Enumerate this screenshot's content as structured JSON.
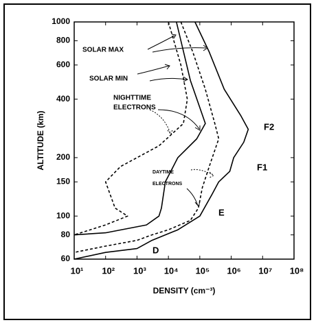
{
  "chart_data": {
    "type": "line",
    "xlabel": "DENSITY (cm⁻³)",
    "ylabel": "ALTITUDE (km)",
    "xscale": "log",
    "yscale": "log",
    "xlim": [
      10,
      100000000
    ],
    "ylim": [
      60,
      1000
    ],
    "xticks": [
      {
        "value": 10,
        "label": "10¹"
      },
      {
        "value": 100,
        "label": "10²"
      },
      {
        "value": 1000,
        "label": "10³"
      },
      {
        "value": 10000,
        "label": "10⁴"
      },
      {
        "value": 100000,
        "label": "10⁵"
      },
      {
        "value": 1000000,
        "label": "10⁶"
      },
      {
        "value": 10000000,
        "label": "10⁷"
      },
      {
        "value": 100000000,
        "label": "10⁸"
      }
    ],
    "yticks": [
      60,
      80,
      100,
      150,
      200,
      400,
      600,
      800,
      1000
    ],
    "annotations": [
      "SOLAR MAX",
      "SOLAR MIN",
      "NIGHTTIME",
      "ELECTRONS",
      "DAYTIME",
      "ELECTRONS",
      "F2",
      "F1",
      "E",
      "D"
    ],
    "series": [
      {
        "color": "#000000",
        "dash": true,
        "x": [
          10000,
          25000,
          40000,
          30000,
          5000,
          300,
          100,
          200,
          500,
          100,
          10
        ],
        "values": [
          1000,
          600,
          400,
          300,
          230,
          180,
          150,
          110,
          100,
          90,
          80
        ]
      },
      {
        "color": "#000000",
        "dash": false,
        "x": [
          18000,
          50000,
          150000,
          80000,
          20000,
          8000,
          6000,
          5000,
          2000,
          100,
          10
        ],
        "values": [
          1000,
          500,
          300,
          250,
          200,
          150,
          110,
          100,
          90,
          82,
          80
        ]
      },
      {
        "color": "#000000",
        "dash": true,
        "x": [
          25000,
          60000,
          150000,
          300000,
          400000,
          200000,
          120000,
          90000,
          50000,
          10000,
          3000,
          1000,
          100,
          10
        ],
        "values": [
          1000,
          700,
          450,
          300,
          250,
          180,
          140,
          110,
          95,
          85,
          80,
          75,
          70,
          65
        ]
      },
      {
        "color": "#000000",
        "dash": false,
        "x": [
          70000,
          200000,
          600000,
          2000000,
          3500000,
          2500000,
          1200000,
          900000,
          400000,
          250000,
          100000,
          20000,
          3000,
          1000,
          100,
          10
        ],
        "values": [
          1000,
          700,
          450,
          330,
          280,
          240,
          200,
          170,
          150,
          130,
          100,
          85,
          75,
          68,
          65,
          60
        ]
      }
    ]
  }
}
